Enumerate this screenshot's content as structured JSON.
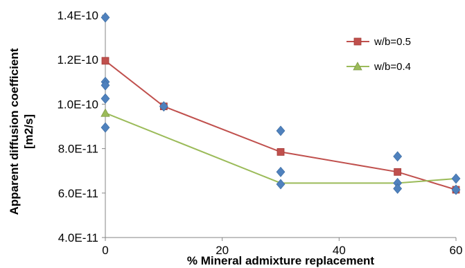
{
  "chart_data": {
    "type": "line",
    "title": "",
    "xlabel": "% Mineral admixture replacement",
    "ylabel": "Apparent diffusion coefficient [m2/s]",
    "ylabel_lines": [
      "Apparent diffusion coefficient",
      "[m2/s]"
    ],
    "xlim": [
      0,
      60
    ],
    "ylim": [
      4e-11,
      1.4e-10
    ],
    "x_ticks": [
      0,
      20,
      40,
      60
    ],
    "x_tick_labels": [
      "0",
      "20",
      "40",
      "60"
    ],
    "y_ticks": [
      4e-11,
      6e-11,
      8e-11,
      1e-10,
      1.2e-10,
      1.4e-10
    ],
    "y_tick_labels": [
      "4.0E-11",
      "6.0E-11",
      "8.0E-11",
      "1.0E-10",
      "1.2E-10",
      "1.4E-10"
    ],
    "grid": false,
    "legend_position": "top-right",
    "series": [
      {
        "name": "w/b=0.5",
        "marker": "square",
        "color": "#c0504d",
        "x": [
          0,
          10,
          30,
          50,
          60
        ],
        "y": [
          1.195e-10,
          9.9e-11,
          7.85e-11,
          6.95e-11,
          6.15e-11
        ]
      },
      {
        "name": "w/b=0.4",
        "marker": "triangle",
        "color": "#9bbb59",
        "x": [
          0,
          30,
          50,
          60
        ],
        "y": [
          9.6e-11,
          6.45e-11,
          6.45e-11,
          6.65e-11
        ]
      }
    ],
    "scatter": {
      "marker": "diamond",
      "color": "#4f81bd",
      "points": [
        [
          0,
          1.39e-10
        ],
        [
          0,
          1.1e-10
        ],
        [
          0,
          1.085e-10
        ],
        [
          0,
          1.025e-10
        ],
        [
          0,
          8.95e-11
        ],
        [
          10,
          9.9e-11
        ],
        [
          30,
          8.8e-11
        ],
        [
          30,
          6.95e-11
        ],
        [
          30,
          6.4e-11
        ],
        [
          50,
          7.65e-11
        ],
        [
          50,
          6.45e-11
        ],
        [
          50,
          6.2e-11
        ],
        [
          60,
          6.65e-11
        ],
        [
          60,
          6.15e-11
        ]
      ]
    }
  }
}
